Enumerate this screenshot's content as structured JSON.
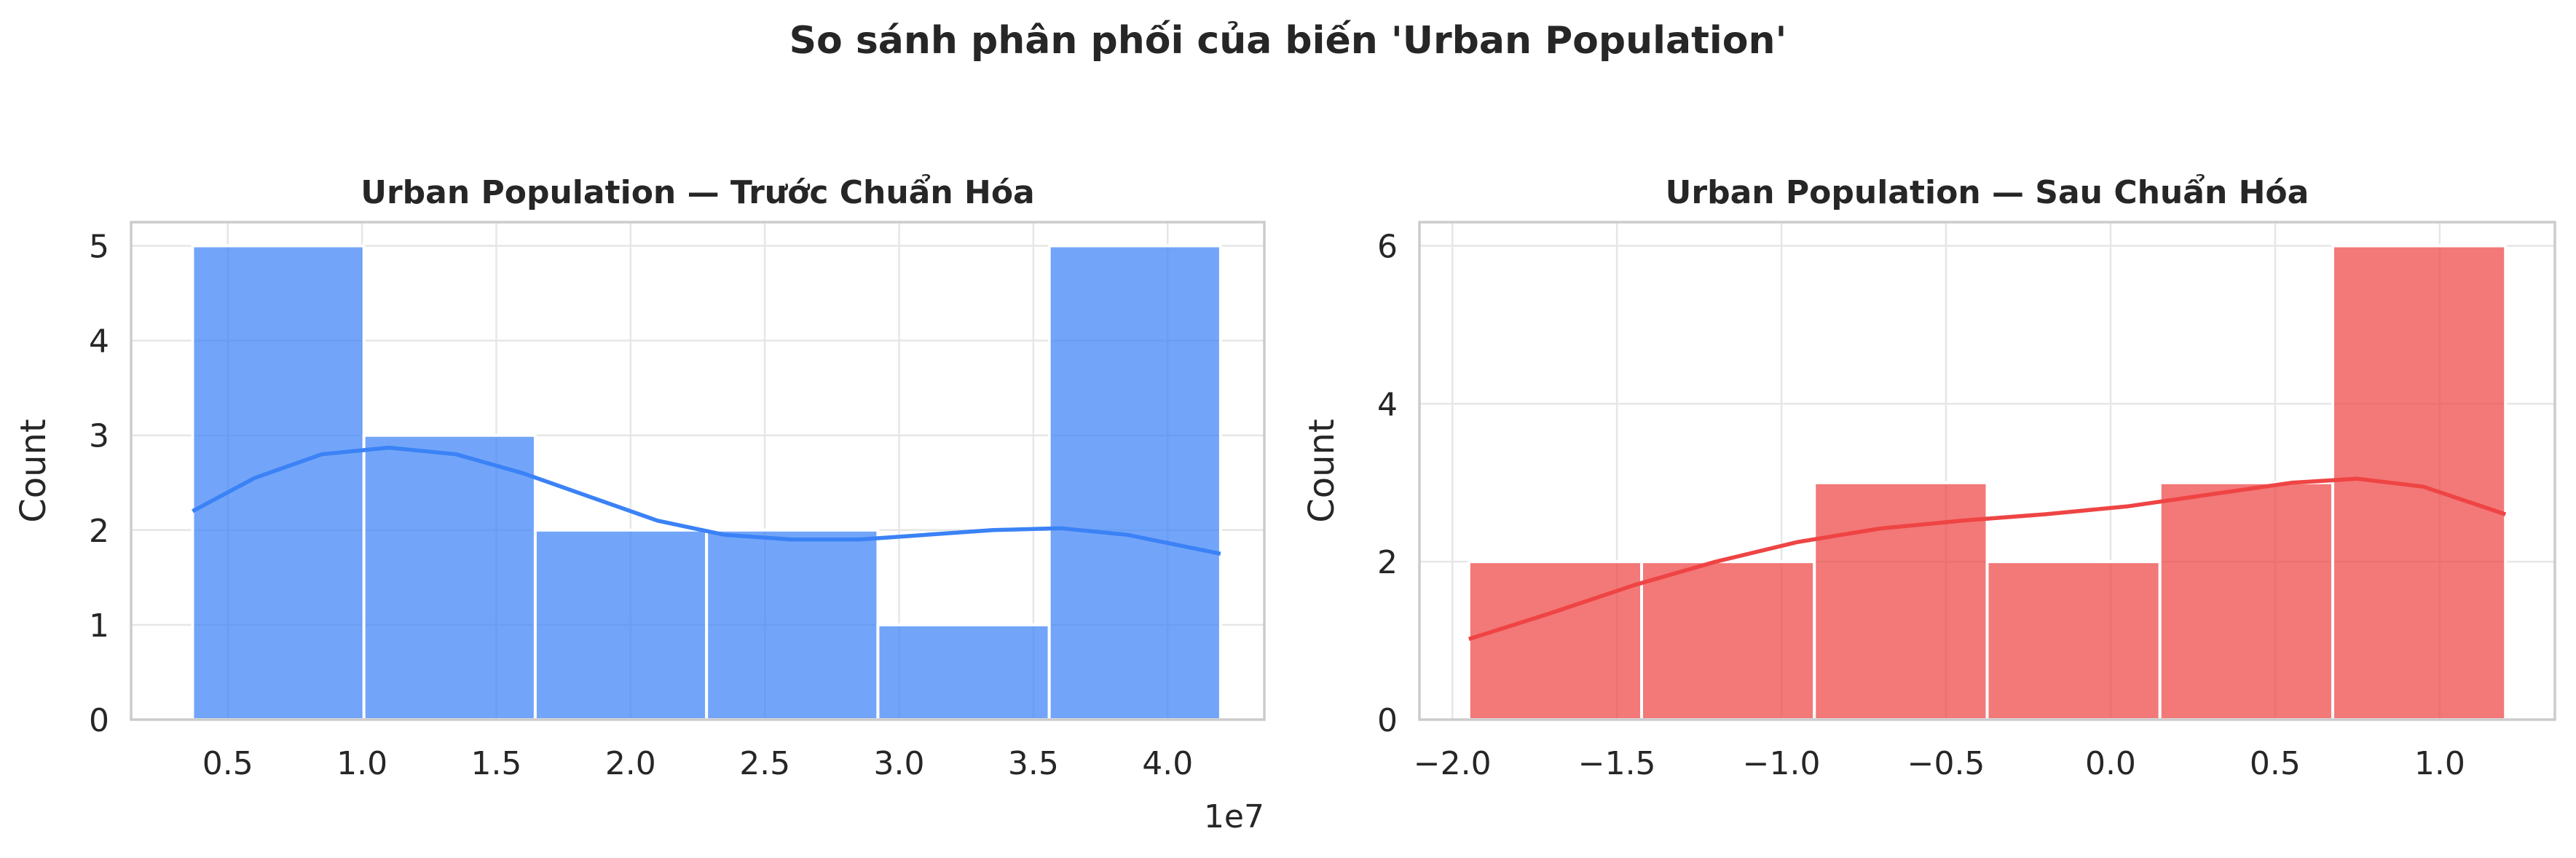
{
  "figure": {
    "title": "So sánh phân phối của biến 'Urban Population'"
  },
  "chart_data": [
    {
      "type": "bar",
      "title": "Urban Population — Trước Chuẩn Hóa",
      "xlabel": "",
      "ylabel": "Count",
      "x_offset_label": "1e7",
      "bin_edges": [
        3690000,
        10070000,
        16450000,
        22830000,
        29210000,
        35590000,
        41970000
      ],
      "values": [
        5,
        3,
        2,
        2,
        1,
        5
      ],
      "xlim": [
        1400000,
        43600000
      ],
      "ylim": [
        0,
        5.25
      ],
      "xticks": [
        5000000,
        10000000,
        15000000,
        20000000,
        25000000,
        30000000,
        35000000,
        40000000
      ],
      "xtick_labels": [
        "0.5",
        "1.0",
        "1.5",
        "2.0",
        "2.5",
        "3.0",
        "3.5",
        "4.0"
      ],
      "yticks": [
        0,
        1,
        2,
        3,
        4,
        5
      ],
      "ytick_labels": [
        "0",
        "1",
        "2",
        "3",
        "4",
        "5"
      ],
      "kde_x": [
        3690000,
        6000000,
        8500000,
        11000000,
        13500000,
        16000000,
        18500000,
        21000000,
        23500000,
        26000000,
        28500000,
        31000000,
        33500000,
        36000000,
        38500000,
        41970000
      ],
      "kde_y": [
        2.2,
        2.55,
        2.8,
        2.87,
        2.8,
        2.6,
        2.35,
        2.1,
        1.95,
        1.9,
        1.9,
        1.95,
        2.0,
        2.02,
        1.95,
        1.75
      ],
      "grid": true,
      "color": "#3b82f6"
    },
    {
      "type": "bar",
      "title": "Urban Population — Sau Chuẩn Hóa",
      "xlabel": "",
      "ylabel": "Count",
      "bin_edges": [
        -1.95,
        -1.425,
        -0.9,
        -0.375,
        0.15,
        0.675,
        1.2
      ],
      "values": [
        2,
        2,
        3,
        2,
        3,
        6
      ],
      "xlim": [
        -2.1,
        1.35
      ],
      "ylim": [
        0,
        6.3
      ],
      "xticks": [
        -2.0,
        -1.5,
        -1.0,
        -0.5,
        0.0,
        0.5,
        1.0
      ],
      "xtick_labels": [
        "−2.0",
        "−1.5",
        "−1.0",
        "−0.5",
        "0.0",
        "0.5",
        "1.0"
      ],
      "yticks": [
        0,
        2,
        4,
        6
      ],
      "ytick_labels": [
        "0",
        "2",
        "4",
        "6"
      ],
      "kde_x": [
        -1.95,
        -1.7,
        -1.45,
        -1.2,
        -0.95,
        -0.7,
        -0.45,
        -0.2,
        0.05,
        0.3,
        0.55,
        0.75,
        0.95,
        1.2
      ],
      "kde_y": [
        1.02,
        1.35,
        1.7,
        2.0,
        2.25,
        2.42,
        2.52,
        2.6,
        2.7,
        2.85,
        3.0,
        3.05,
        2.95,
        2.6
      ],
      "grid": true,
      "color": "#ef4444"
    }
  ]
}
